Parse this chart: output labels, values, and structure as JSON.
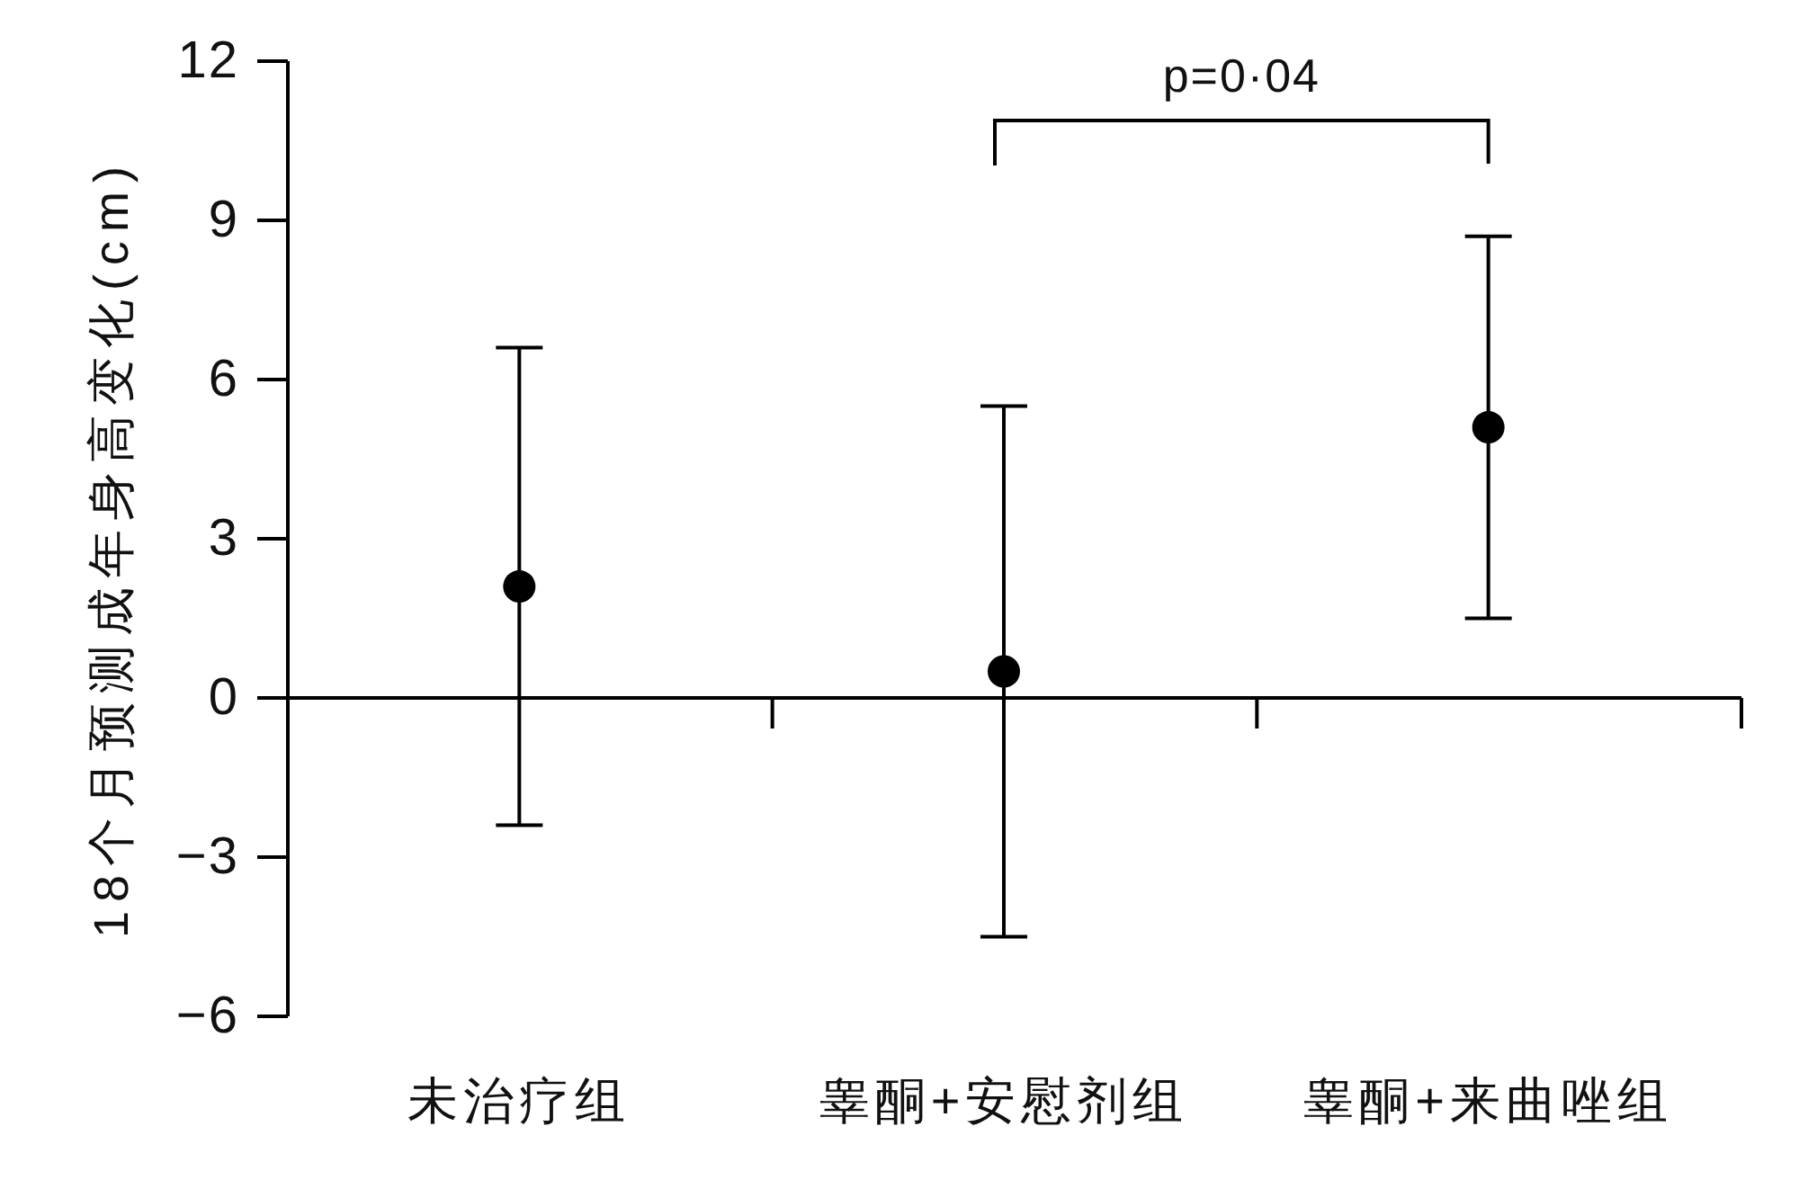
{
  "chart_data": {
    "type": "scatter",
    "ylabel": "18个月预测成年身高变化(cm)",
    "categories": [
      "未治疗组",
      "睾酮+安慰剂组",
      "睾酮+来曲唑组"
    ],
    "values": [
      2.1,
      0.5,
      5.1
    ],
    "errors": [
      4.5,
      5.0,
      3.6
    ],
    "color": "#000000",
    "marker": "circle",
    "ylim": [
      -6,
      12
    ],
    "yticks": [
      {
        "value": -6,
        "label": "−6"
      },
      {
        "value": -3,
        "label": "−3"
      },
      0,
      3,
      6,
      9,
      12
    ],
    "annotations": [
      "p=0·04"
    ]
  }
}
